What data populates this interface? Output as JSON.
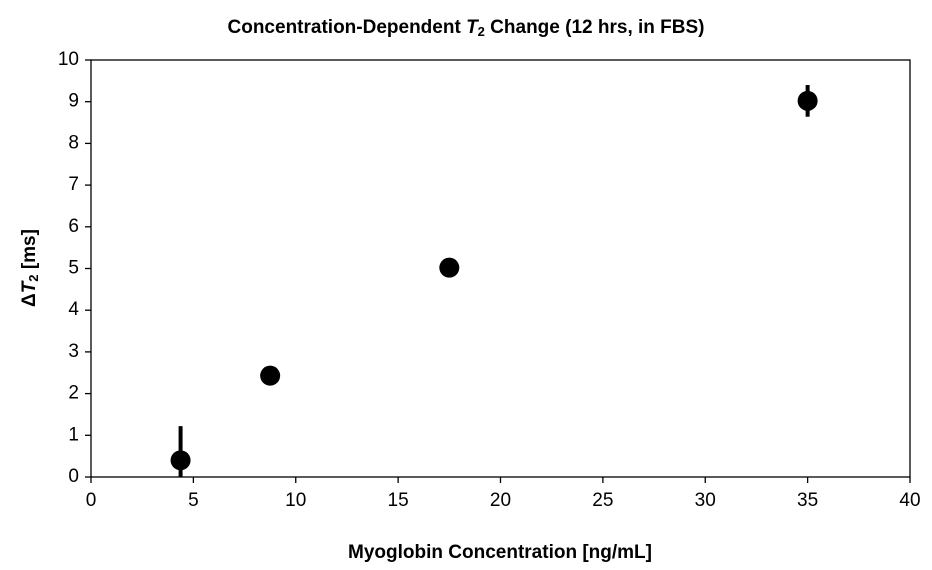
{
  "chart_data": {
    "type": "scatter",
    "title_parts": [
      "Concentration-Dependent ",
      "T",
      "2",
      " Change (12 hrs, in FBS)"
    ],
    "x_label": "Myoglobin Concentration [ng/mL]",
    "y_label_parts": [
      "Δ",
      "T",
      "2",
      " [ms]"
    ],
    "series": [
      {
        "color": "#000000",
        "x": [
          4.375,
          8.75,
          17.5,
          35
        ],
        "values": [
          0.4,
          2.43,
          5.02,
          9.02
        ],
        "errors": [
          0.82,
          0.12,
          0.1,
          0.38
        ]
      }
    ],
    "xlim": [
      0,
      40
    ],
    "xticks": [
      0,
      5,
      10,
      15,
      20,
      25,
      30,
      35,
      40
    ],
    "ylim": [
      0,
      10
    ],
    "yticks": [
      0,
      1,
      2,
      3,
      4,
      5,
      6,
      7,
      8,
      9,
      10
    ],
    "grid": false
  }
}
